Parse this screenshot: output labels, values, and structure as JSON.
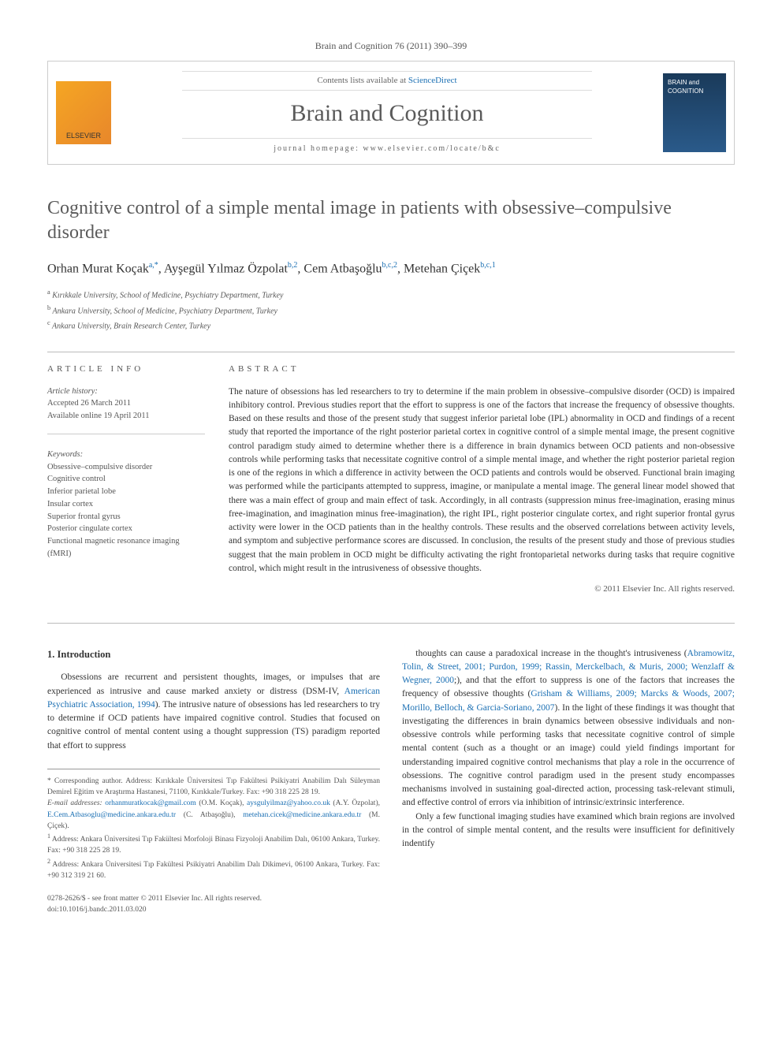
{
  "ref_line": "Brain and Cognition 76 (2011) 390–399",
  "header": {
    "contents_prefix": "Contents lists available at ",
    "sciencedirect": "ScienceDirect",
    "journal_title": "Brain and Cognition",
    "homepage_label": "journal homepage: ",
    "homepage_url": "www.elsevier.com/locate/b&c",
    "publisher_logo_text": "ELSEVIER",
    "cover_text": "BRAIN and COGNITION"
  },
  "title": "Cognitive control of a simple mental image in patients with obsessive–compulsive disorder",
  "authors_html": "Orhan Murat Koçak<sup>a,*</sup>, Ayşegül Yılmaz Özpolat<sup>b,2</sup>, Cem Atbaşoğlu<sup>b,c,2</sup>, Metehan Çiçek<sup>b,c,1</sup>",
  "affiliations": [
    {
      "sup": "a",
      "text": "Kırıkkale University, School of Medicine, Psychiatry Department, Turkey"
    },
    {
      "sup": "b",
      "text": "Ankara University, School of Medicine, Psychiatry Department, Turkey"
    },
    {
      "sup": "c",
      "text": "Ankara University, Brain Research Center, Turkey"
    }
  ],
  "info": {
    "label": "ARTICLE INFO",
    "history_hd": "Article history:",
    "history_lines": [
      "Accepted 26 March 2011",
      "Available online 19 April 2011"
    ],
    "keywords_hd": "Keywords:",
    "keywords": [
      "Obsessive–compulsive disorder",
      "Cognitive control",
      "Inferior parietal lobe",
      "Insular cortex",
      "Superior frontal gyrus",
      "Posterior cingulate cortex",
      "Functional magnetic resonance imaging (fMRI)"
    ]
  },
  "abstract": {
    "label": "ABSTRACT",
    "text": "The nature of obsessions has led researchers to try to determine if the main problem in obsessive–compulsive disorder (OCD) is impaired inhibitory control. Previous studies report that the effort to suppress is one of the factors that increase the frequency of obsessive thoughts. Based on these results and those of the present study that suggest inferior parietal lobe (IPL) abnormality in OCD and findings of a recent study that reported the importance of the right posterior parietal cortex in cognitive control of a simple mental image, the present cognitive control paradigm study aimed to determine whether there is a difference in brain dynamics between OCD patients and non-obsessive controls while performing tasks that necessitate cognitive control of a simple mental image, and whether the right posterior parietal region is one of the regions in which a difference in activity between the OCD patients and controls would be observed. Functional brain imaging was performed while the participants attempted to suppress, imagine, or manipulate a mental image. The general linear model showed that there was a main effect of group and main effect of task. Accordingly, in all contrasts (suppression minus free-imagination, erasing minus free-imagination, and imagination minus free-imagination), the right IPL, right posterior cingulate cortex, and right superior frontal gyrus activity were lower in the OCD patients than in the healthy controls. These results and the observed correlations between activity levels, and symptom and subjective performance scores are discussed. In conclusion, the results of the present study and those of previous studies suggest that the main problem in OCD might be difficulty activating the right frontoparietal networks during tasks that require cognitive control, which might result in the intrusiveness of obsessive thoughts.",
    "copyright": "© 2011 Elsevier Inc. All rights reserved."
  },
  "intro": {
    "heading": "1. Introduction",
    "col1": "Obsessions are recurrent and persistent thoughts, images, or impulses that are experienced as intrusive and cause marked anxiety or distress (DSM-IV, American Psychiatric Association, 1994). The intrusive nature of obsessions has led researchers to try to determine if OCD patients have impaired cognitive control. Studies that focused on cognitive control of mental content using a thought suppression (TS) paradigm reported that effort to suppress",
    "col2_p1": "thoughts can cause a paradoxical increase in the thought's intrusiveness (Abramowitz, Tolin, & Street, 2001; Purdon, 1999; Rassin, Merckelbach, & Muris, 2000; Wenzlaff & Wegner, 2000;), and that the effort to suppress is one of the factors that increases the frequency of obsessive thoughts (Grisham & Williams, 2009; Marcks & Woods, 2007; Morillo, Belloch, & Garcia-Soriano, 2007). In the light of these findings it was thought that investigating the differences in brain dynamics between obsessive individuals and non-obsessive controls while performing tasks that necessitate cognitive control of simple mental content (such as a thought or an image) could yield findings important for understanding impaired cognitive control mechanisms that play a role in the occurrence of obsessions. The cognitive control paradigm used in the present study encompasses mechanisms involved in sustaining goal-directed action, processing task-relevant stimuli, and effective control of errors via inhibition of intrinsic/extrinsic interference.",
    "col2_p2": "Only a few functional imaging studies have examined which brain regions are involved in the control of simple mental content, and the results were insufficient for definitively indentify"
  },
  "footnotes": {
    "corr": "* Corresponding author. Address: Kırıkkale Üniversitesi Tıp Fakültesi Psikiyatri Anabilim Dalı Süleyman Demirel Eğitim ve Araştırma Hastanesi, 71100, Kırıkkale/Turkey. Fax: +90 318 225 28 19.",
    "email_label": "E-mail addresses: ",
    "emails": [
      {
        "addr": "orhanmuratkocak@gmail.com",
        "who": "(O.M. Koçak)"
      },
      {
        "addr": "aysgulyilmaz@yahoo.co.uk",
        "who": "(A.Y. Özpolat)"
      },
      {
        "addr": "E.Cem.Atbasoglu@medicine.ankara.edu.tr",
        "who": "(C. Atbaşoğlu)"
      },
      {
        "addr": "metehan.cicek@medicine.ankara.edu.tr",
        "who": "(M. Çiçek)"
      }
    ],
    "n1": "Address: Ankara Üniversitesi Tıp Fakültesi Morfoloji Binası Fizyoloji Anabilim Dalı, 06100 Ankara, Turkey. Fax: +90 318 225 28 19.",
    "n2": "Address: Ankara Üniversitesi Tıp Fakültesi Psikiyatri Anabilim Dalı Dikimevi, 06100 Ankara, Turkey. Fax: +90 312 319 21 60."
  },
  "doi": {
    "line1": "0278-2626/$ - see front matter © 2011 Elsevier Inc. All rights reserved.",
    "line2": "doi:10.1016/j.bandc.2011.03.020"
  },
  "colors": {
    "link": "#1a6fb3",
    "text": "#333333",
    "muted": "#555555",
    "rule": "#bbbbbb",
    "background": "#ffffff"
  }
}
